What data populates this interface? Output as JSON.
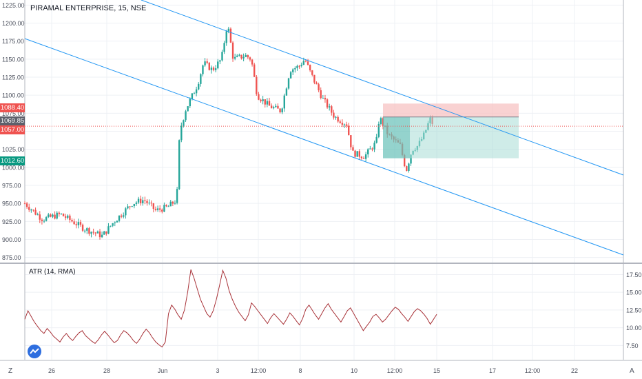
{
  "header": {
    "title": "PIRAMAL ENTERPRISE, 15, NSE"
  },
  "indicator": {
    "title": "ATR (14, RMA)",
    "line_color": "#a83238"
  },
  "colors": {
    "up": "#26a69a",
    "down": "#ef5350",
    "channel": "#2196f3",
    "stop_zone": "#f7c3c3",
    "target_zone": "#a7dcd5"
  },
  "corners": {
    "left": "Z",
    "right": "A"
  },
  "labels": [
    {
      "name": "stop-price",
      "text": "1088.40",
      "color": "#ef5350"
    },
    {
      "name": "entry-price",
      "text": "1069.85",
      "color": "#5d606b"
    },
    {
      "name": "current-price",
      "text": "1057.00",
      "color": "#ef5350"
    },
    {
      "name": "target-price",
      "text": "1012.60",
      "color": "#089981"
    }
  ],
  "chart_data": [
    {
      "type": "candlestick",
      "title": "PIRAMAL ENTERPRISE, 15, NSE",
      "ylim": [
        868,
        1232
      ],
      "yticks": [
        "875.00",
        "900.00",
        "925.00",
        "950.00",
        "975.00",
        "1000.00",
        "1025.00",
        "1050.00",
        "1075.00",
        "1100.00",
        "1125.00",
        "1150.00",
        "1175.00",
        "1200.00",
        "1225.00"
      ],
      "xticks": [
        "26",
        "28",
        "Jun",
        "3",
        "12:00",
        "8",
        "10",
        "12:00",
        "15",
        "17",
        "12:00",
        "22"
      ],
      "price_path": [
        [
          0,
          950
        ],
        [
          3,
          928
        ],
        [
          6,
          935
        ],
        [
          10,
          915
        ],
        [
          13,
          905
        ],
        [
          15,
          925
        ],
        [
          18,
          950
        ],
        [
          20,
          955
        ],
        [
          22,
          940
        ],
        [
          24,
          945
        ],
        [
          25.5,
          955
        ],
        [
          26,
          1050
        ],
        [
          27,
          1080
        ],
        [
          29,
          1115
        ],
        [
          30,
          1145
        ],
        [
          31.5,
          1135
        ],
        [
          33,
          1150
        ],
        [
          34,
          1200
        ],
        [
          35,
          1150
        ],
        [
          37,
          1155
        ],
        [
          38,
          1150
        ],
        [
          39,
          1100
        ],
        [
          41,
          1085
        ],
        [
          43,
          1078
        ],
        [
          44.5,
          1135
        ],
        [
          46,
          1140
        ],
        [
          47,
          1150
        ],
        [
          48,
          1130
        ],
        [
          50,
          1095
        ],
        [
          52,
          1070
        ],
        [
          54,
          1060
        ],
        [
          55,
          1020
        ],
        [
          57,
          1015
        ],
        [
          59,
          1035
        ],
        [
          59.5,
          1070
        ],
        [
          61,
          1045
        ],
        [
          63,
          1030
        ],
        [
          64,
          995
        ],
        [
          65,
          1025
        ],
        [
          66,
          1030
        ],
        [
          67,
          1045
        ],
        [
          68,
          1067
        ],
        [
          68.5,
          1060
        ]
      ],
      "channel_upper": [
        [
          1226,
          1050
        ],
        [
          990,
          1720
        ]
      ],
      "channel_lower": [
        [
          1190,
          925
        ],
        [
          875,
          1720
        ]
      ],
      "position": {
        "entry": 1069.85,
        "stop": 1088.4,
        "target": 1012.6,
        "current": 1057.0
      }
    },
    {
      "type": "line",
      "title": "ATR (14, RMA)",
      "ylim": [
        5.5,
        19.0
      ],
      "yticks": [
        "7.50",
        "10.00",
        "12.50",
        "15.00",
        "17.50"
      ],
      "values": [
        11.2,
        12.4,
        11.6,
        10.8,
        10.2,
        9.6,
        9.2,
        9.9,
        9.4,
        8.8,
        8.4,
        8.0,
        8.7,
        9.2,
        8.6,
        8.2,
        8.8,
        9.3,
        9.6,
        8.9,
        8.5,
        8.1,
        7.8,
        8.3,
        9.0,
        9.5,
        9.0,
        8.4,
        7.9,
        8.2,
        9.0,
        9.6,
        9.3,
        8.8,
        8.2,
        7.8,
        8.4,
        9.2,
        9.8,
        9.3,
        8.6,
        8.0,
        7.6,
        7.3,
        8.0,
        12.0,
        13.2,
        12.6,
        11.8,
        11.2,
        12.5,
        15.0,
        18.2,
        17.0,
        15.5,
        14.0,
        13.0,
        12.0,
        11.5,
        12.4,
        14.0,
        16.0,
        18.1,
        17.0,
        15.2,
        14.0,
        13.0,
        12.2,
        11.6,
        11.0,
        11.8,
        13.5,
        13.0,
        12.4,
        11.8,
        11.2,
        10.6,
        11.4,
        12.0,
        11.5,
        11.0,
        10.5,
        11.2,
        12.1,
        11.6,
        11.0,
        10.4,
        11.3,
        12.6,
        13.2,
        12.5,
        11.8,
        11.2,
        12.0,
        12.8,
        13.4,
        12.6,
        12.0,
        11.4,
        10.8,
        11.6,
        12.4,
        12.8,
        12.0,
        11.2,
        10.4,
        9.6,
        10.2,
        10.8,
        11.6,
        11.9,
        11.4,
        10.8,
        11.2,
        11.8,
        12.4,
        12.9,
        12.6,
        12.0,
        11.5,
        10.9,
        11.6,
        12.3,
        12.7,
        12.4,
        11.9,
        11.3,
        10.5,
        11.2,
        11.9
      ]
    }
  ]
}
